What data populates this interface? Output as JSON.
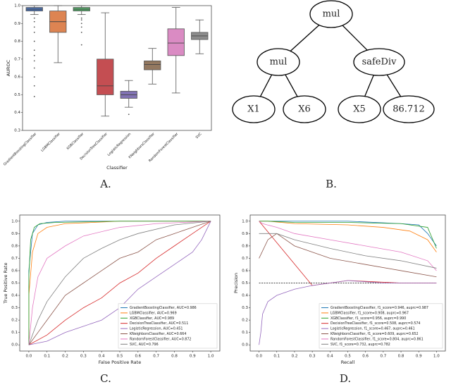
{
  "panel_labels": [
    "A.",
    "B.",
    "C.",
    "D."
  ],
  "tree": {
    "nodes": [
      {
        "label": "mul"
      },
      {
        "label": "mul"
      },
      {
        "label": "safeDiv"
      },
      {
        "label": "X1"
      },
      {
        "label": "X6"
      },
      {
        "label": "X5"
      },
      {
        "label": "86.712"
      }
    ]
  },
  "chart_data": [
    {
      "type": "box",
      "xlabel": "Classifier",
      "ylabel": "AUROC",
      "categories": [
        "GradientBoostingClassifier",
        "LGBMClassifier",
        "XGBClassifier",
        "DecisionTreeClassifier",
        "LogisticRegression",
        "KNeighborsClassifier",
        "RandomForestClassifier",
        "SVC"
      ],
      "colors": [
        "#4c72b0",
        "#dd8452",
        "#55a868",
        "#c44e52",
        "#8172b3",
        "#937860",
        "#da8bc3",
        "#8c8c8c"
      ],
      "boxes": [
        {
          "min": 0.95,
          "q1": 0.97,
          "median": 0.98,
          "q3": 0.99,
          "max": 1.0,
          "outliers": [
            0.93,
            0.91,
            0.88,
            0.85,
            0.8,
            0.75,
            0.72,
            0.69,
            0.65,
            0.6,
            0.55,
            0.49
          ]
        },
        {
          "min": 0.68,
          "q1": 0.85,
          "median": 0.91,
          "q3": 0.97,
          "max": 1.0,
          "outliers": []
        },
        {
          "min": 0.95,
          "q1": 0.97,
          "median": 0.98,
          "q3": 0.99,
          "max": 1.0,
          "outliers": [
            0.93,
            0.92,
            0.9,
            0.88,
            0.85,
            0.78
          ]
        },
        {
          "min": 0.38,
          "q1": 0.5,
          "median": 0.55,
          "q3": 0.7,
          "max": 0.96,
          "outliers": []
        },
        {
          "min": 0.43,
          "q1": 0.48,
          "median": 0.5,
          "q3": 0.52,
          "max": 0.58,
          "outliers": [
            0.39
          ]
        },
        {
          "min": 0.56,
          "q1": 0.64,
          "median": 0.67,
          "q3": 0.69,
          "max": 0.76,
          "outliers": []
        },
        {
          "min": 0.51,
          "q1": 0.72,
          "median": 0.79,
          "q3": 0.87,
          "max": 0.99,
          "outliers": []
        },
        {
          "min": 0.73,
          "q1": 0.81,
          "median": 0.83,
          "q3": 0.85,
          "max": 0.92,
          "outliers": []
        }
      ],
      "ylim": [
        0.3,
        1.0
      ],
      "yticks": [
        0.3,
        0.4,
        0.5,
        0.6,
        0.7,
        0.8,
        0.9,
        {
          "value": 1.0,
          "label": "1.0"
        }
      ]
    },
    {
      "type": "line",
      "xlabel": "False Positive Rate",
      "ylabel": "True Positive Rate",
      "legend": "lower right",
      "xlim": [
        -0.05,
        1.05
      ],
      "ylim": [
        -0.05,
        1.05
      ],
      "xticks": [
        {
          "value": 0,
          "label": "0.0"
        },
        0.1,
        0.2,
        0.3,
        0.4,
        0.5,
        0.6,
        0.7,
        0.8,
        0.9,
        {
          "value": 1,
          "label": "1.0"
        }
      ],
      "yticks": [
        {
          "value": 0,
          "label": "0.0"
        },
        0.1,
        0.2,
        0.3,
        0.4,
        0.5,
        0.6,
        0.7,
        0.8,
        0.9,
        {
          "value": 1,
          "label": "1.0"
        }
      ],
      "series": [
        {
          "name": "GradientBoostingClassifier, AUC=0.986",
          "color": "#1f77b4",
          "x": [
            0,
            0,
            0.02,
            0.05,
            0.1,
            0.2,
            0.5,
            1
          ],
          "values": [
            0,
            0.6,
            0.9,
            0.97,
            0.99,
            1,
            1,
            1
          ]
        },
        {
          "name": "LGBMClassifier, AUC=0.969",
          "color": "#ff7f0e",
          "x": [
            0,
            0,
            0.02,
            0.05,
            0.1,
            0.2,
            0.5,
            1
          ],
          "values": [
            0,
            0.4,
            0.75,
            0.9,
            0.95,
            0.98,
            1,
            1
          ]
        },
        {
          "name": "XGBClassifier, AUC=0.989",
          "color": "#2ca02c",
          "x": [
            0,
            0,
            0.01,
            0.03,
            0.06,
            0.15,
            0.5,
            1
          ],
          "values": [
            0,
            0.55,
            0.85,
            0.95,
            0.98,
            0.99,
            1,
            1
          ]
        },
        {
          "name": "DecisionTreeClassifier, AUC=0.511",
          "color": "#d62728",
          "x": [
            0,
            0.1,
            0.2,
            0.3,
            0.4,
            0.5,
            0.6,
            0.7,
            0.8,
            0.9,
            1
          ],
          "values": [
            0,
            0.08,
            0.2,
            0.3,
            0.38,
            0.5,
            0.58,
            0.7,
            0.8,
            0.9,
            1
          ]
        },
        {
          "name": "LogisticRegression, AUC=0.451",
          "color": "#9467bd",
          "x": [
            0,
            0.1,
            0.2,
            0.3,
            0.4,
            0.5,
            0.6,
            0.7,
            0.8,
            0.9,
            0.95,
            1
          ],
          "values": [
            0,
            0.03,
            0.1,
            0.15,
            0.2,
            0.3,
            0.45,
            0.55,
            0.65,
            0.75,
            0.85,
            1
          ]
        },
        {
          "name": "KNeighborsClassifier, AUC=0.664",
          "color": "#8c564b",
          "x": [
            0,
            0.05,
            0.1,
            0.2,
            0.3,
            0.4,
            0.5,
            0.6,
            0.7,
            0.8,
            0.9,
            1
          ],
          "values": [
            0,
            0.1,
            0.2,
            0.4,
            0.5,
            0.6,
            0.7,
            0.75,
            0.85,
            0.9,
            0.95,
            1
          ]
        },
        {
          "name": "RandomForestClassifier, AUC=0.872",
          "color": "#e377c2",
          "x": [
            0,
            0.02,
            0.05,
            0.1,
            0.2,
            0.3,
            0.5,
            0.7,
            1
          ],
          "values": [
            0,
            0.3,
            0.55,
            0.7,
            0.8,
            0.88,
            0.95,
            0.98,
            1
          ]
        },
        {
          "name": "SVC, AUC=0.796",
          "color": "#7f7f7f",
          "x": [
            0,
            0.05,
            0.1,
            0.2,
            0.3,
            0.4,
            0.5,
            0.6,
            0.8,
            1
          ],
          "values": [
            0,
            0.2,
            0.35,
            0.55,
            0.7,
            0.78,
            0.85,
            0.9,
            0.97,
            1
          ]
        }
      ]
    },
    {
      "type": "line",
      "xlabel": "Recall",
      "ylabel": "Precision",
      "legend": "lower right",
      "xlim": [
        -0.05,
        1.05
      ],
      "ylim": [
        -0.05,
        1.05
      ],
      "xticks": [
        {
          "value": 0,
          "label": "0.0"
        },
        0.1,
        0.2,
        0.3,
        0.4,
        0.5,
        0.6,
        0.7,
        0.8,
        0.9,
        {
          "value": 1,
          "label": "1.0"
        }
      ],
      "yticks": [
        {
          "value": 0,
          "label": "0.0"
        },
        0.1,
        0.2,
        0.3,
        0.4,
        0.5,
        0.6,
        0.7,
        0.8,
        0.9,
        {
          "value": 1,
          "label": "1.0"
        }
      ],
      "reference_line": {
        "x": [
          0,
          1
        ],
        "values": [
          0.5,
          0.5
        ]
      },
      "series": [
        {
          "name": "GradientBoostingClassifier, f1_score=0.946, auprc=0.987",
          "color": "#1f77b4",
          "x": [
            0,
            0.02,
            0.1,
            0.5,
            0.8,
            0.9,
            0.95,
            1
          ],
          "values": [
            1,
            1,
            1,
            1,
            0.98,
            0.97,
            0.9,
            0.8
          ]
        },
        {
          "name": "LGBMClassifier, f1_score=0.908, auprc=0.967",
          "color": "#ff7f0e",
          "x": [
            0,
            0.05,
            0.2,
            0.5,
            0.7,
            0.85,
            0.95,
            1
          ],
          "values": [
            1,
            1,
            0.98,
            0.97,
            0.95,
            0.92,
            0.85,
            0.75
          ]
        },
        {
          "name": "XGBClassifier, f1_score=0.956, auprc=0.990",
          "color": "#2ca02c",
          "x": [
            0,
            0.05,
            0.2,
            0.5,
            0.8,
            0.95,
            1
          ],
          "values": [
            1,
            1,
            0.99,
            0.99,
            0.98,
            0.95,
            0.78
          ]
        },
        {
          "name": "DecisionTreeClassifier, f1_score=0.508, auprc=0.574",
          "color": "#d62728",
          "x": [
            0,
            0.3,
            0.5,
            0.8,
            1
          ],
          "values": [
            1,
            0.48,
            0.52,
            0.5,
            0.5
          ]
        },
        {
          "name": "LogisticRegression, f1_score=0.467, auprc=0.461",
          "color": "#9467bd",
          "x": [
            0,
            0.01,
            0.02,
            0.05,
            0.1,
            0.2,
            0.3,
            0.5,
            0.7,
            1
          ],
          "values": [
            0,
            0.1,
            0.25,
            0.35,
            0.4,
            0.45,
            0.48,
            0.52,
            0.5,
            0.5
          ]
        },
        {
          "name": "KNeighborsClassifier, f1_score=0.609, auprc=0.652",
          "color": "#8c564b",
          "x": [
            0,
            0.05,
            0.1,
            0.2,
            0.4,
            0.6,
            0.8,
            1
          ],
          "values": [
            0.7,
            0.85,
            0.9,
            0.8,
            0.7,
            0.65,
            0.6,
            0.55
          ]
        },
        {
          "name": "RandomForestClassifier, f1_score=0.804, auprc=0.861",
          "color": "#e377c2",
          "x": [
            0,
            0.02,
            0.1,
            0.2,
            0.4,
            0.6,
            0.8,
            0.95,
            1
          ],
          "values": [
            1,
            0.98,
            0.95,
            0.9,
            0.85,
            0.8,
            0.75,
            0.68,
            0.6
          ]
        },
        {
          "name": "SVC, f1_score=0.732, auprc=0.782",
          "color": "#7f7f7f",
          "x": [
            0,
            0.1,
            0.2,
            0.4,
            0.6,
            0.8,
            1
          ],
          "values": [
            0.9,
            0.9,
            0.85,
            0.78,
            0.72,
            0.68,
            0.62
          ]
        }
      ]
    }
  ]
}
